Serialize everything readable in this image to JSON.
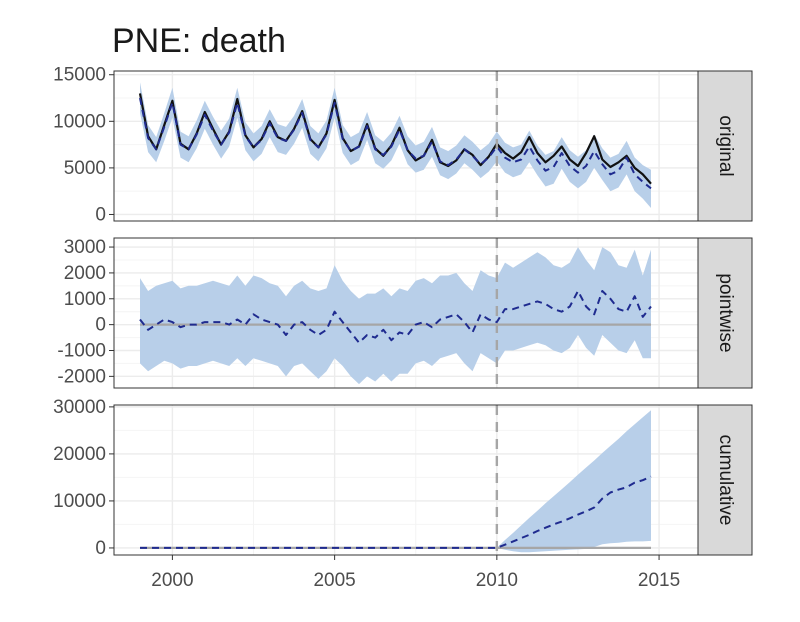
{
  "chart_data": {
    "type": "line",
    "title": "PNE: death",
    "xlabel": "",
    "ylabel": "",
    "xlim": [
      1998.2,
      2016.2
    ],
    "x_ticks": [
      "2000",
      "2005",
      "2010",
      "2015"
    ],
    "intervention": 2010,
    "colors": {
      "band": "#b8cfe9",
      "predicted": "#1f2b8f",
      "observed": "#111111",
      "baseline": "#a6a6a6",
      "intervention": "#a6a6a6",
      "strip": "#d9d9d9",
      "grid": "#ececec"
    },
    "x": [
      1999,
      1999.25,
      1999.5,
      1999.75,
      2000,
      2000.25,
      2000.5,
      2000.75,
      2001,
      2001.25,
      2001.5,
      2001.75,
      2002,
      2002.25,
      2002.5,
      2002.75,
      2003,
      2003.25,
      2003.5,
      2003.75,
      2004,
      2004.25,
      2004.5,
      2004.75,
      2005,
      2005.25,
      2005.5,
      2005.75,
      2006,
      2006.25,
      2006.5,
      2006.75,
      2007,
      2007.25,
      2007.5,
      2007.75,
      2008,
      2008.25,
      2008.5,
      2008.75,
      2009,
      2009.25,
      2009.5,
      2009.75,
      2010,
      2010.25,
      2010.5,
      2010.75,
      2011,
      2011.25,
      2011.5,
      2011.75,
      2012,
      2012.25,
      2012.5,
      2012.75,
      2013,
      2013.25,
      2013.5,
      2013.75,
      2014,
      2014.25,
      2014.5,
      2014.75
    ],
    "panels": [
      {
        "strip": "original",
        "y_ticks": [
          "0",
          "5000",
          "10000",
          "15000"
        ],
        "ylim": [
          -700,
          15400
        ],
        "series": [
          {
            "role": "observed",
            "values": [
              13000,
              8400,
              7000,
              9600,
              12200,
              7600,
              7000,
              8700,
              11000,
              9200,
              7500,
              8900,
              12400,
              8500,
              7200,
              8100,
              10000,
              8300,
              7900,
              9200,
              11100,
              8100,
              7200,
              8700,
              12300,
              8200,
              6800,
              7300,
              9700,
              7100,
              6300,
              7400,
              9300,
              6900,
              5800,
              6300,
              8000,
              5600,
              5200,
              5800,
              7000,
              6400,
              5300,
              6200,
              7600,
              6600,
              6000,
              6700,
              8300,
              6600,
              5600,
              6300,
              7300,
              5900,
              5200,
              6600,
              8400,
              5900,
              5100,
              5600,
              6300,
              5000,
              4300,
              3300
            ]
          },
          {
            "role": "predicted",
            "values": [
              12500,
              8200,
              7000,
              9400,
              12000,
              7500,
              7000,
              8600,
              10700,
              9000,
              7500,
              8800,
              12000,
              8400,
              7200,
              8000,
              9800,
              8200,
              7900,
              9100,
              10900,
              8000,
              7200,
              8600,
              12000,
              8100,
              6800,
              7300,
              9500,
              7000,
              6400,
              7300,
              9100,
              6900,
              6000,
              6300,
              7800,
              5700,
              5300,
              5900,
              7000,
              6300,
              5400,
              6100,
              7300,
              6100,
              5600,
              5900,
              7300,
              5800,
              4700,
              5100,
              6600,
              5200,
              4500,
              5200,
              6800,
              5400,
              4300,
              4700,
              6100,
              4300,
              3500,
              2800
            ]
          },
          {
            "role": "upper",
            "values": [
              14200,
              9600,
              8300,
              10900,
              13600,
              8900,
              8400,
              10100,
              12200,
              10500,
              9000,
              10300,
              13600,
              9900,
              8700,
              9500,
              11300,
              9700,
              9400,
              10600,
              12400,
              9500,
              8700,
              10100,
              13600,
              9600,
              8300,
              8800,
              11000,
              8500,
              7800,
              8800,
              10600,
              8400,
              7400,
              7800,
              9400,
              7200,
              6800,
              7400,
              8500,
              7800,
              6900,
              7600,
              8900,
              7700,
              7200,
              7500,
              9000,
              7400,
              6400,
              6800,
              8300,
              6900,
              6200,
              6900,
              8600,
              7100,
              6100,
              6500,
              7900,
              6100,
              5300,
              4800
            ]
          },
          {
            "role": "lower",
            "values": [
              10900,
              6700,
              5600,
              7900,
              10400,
              6100,
              5600,
              7100,
              9200,
              7500,
              6000,
              7300,
              10400,
              6900,
              5700,
              6500,
              8300,
              6700,
              6400,
              7600,
              9300,
              6500,
              5700,
              7100,
              10400,
              6600,
              5300,
              5800,
              8000,
              5500,
              4900,
              5800,
              7600,
              5400,
              4500,
              4800,
              6200,
              4200,
              3800,
              4400,
              5500,
              4800,
              3900,
              4600,
              5700,
              4500,
              4000,
              4300,
              5600,
              4200,
              3000,
              3300,
              4900,
              3500,
              2800,
              3500,
              5000,
              3700,
              2500,
              2900,
              4300,
              2500,
              1700,
              700
            ]
          }
        ]
      },
      {
        "strip": "pointwise",
        "y_ticks": [
          "-2000",
          "-1000",
          "0",
          "1000",
          "2000",
          "3000"
        ],
        "ylim": [
          -2450,
          3350
        ],
        "series": [
          {
            "role": "predicted",
            "values": [
              200,
              -200,
              0,
              200,
              100,
              -100,
              0,
              0,
              100,
              100,
              100,
              0,
              200,
              0,
              400,
              200,
              100,
              0,
              -400,
              0,
              100,
              -200,
              -400,
              -200,
              500,
              100,
              -300,
              -700,
              -400,
              -500,
              -200,
              -600,
              -300,
              -400,
              0,
              100,
              -100,
              200,
              300,
              400,
              100,
              -300,
              400,
              200,
              100,
              600,
              600,
              700,
              800,
              900,
              800,
              600,
              500,
              700,
              1300,
              700,
              400,
              1300,
              1000,
              600,
              500,
              1100,
              300,
              700
            ]
          },
          {
            "role": "baseline",
            "values": [
              0,
              0,
              0,
              0,
              0,
              0,
              0,
              0,
              0,
              0,
              0,
              0,
              0,
              0,
              0,
              0,
              0,
              0,
              0,
              0,
              0,
              0,
              0,
              0,
              0,
              0,
              0,
              0,
              0,
              0,
              0,
              0,
              0,
              0,
              0,
              0,
              0,
              0,
              0,
              0,
              0,
              0,
              0,
              0,
              0,
              0,
              0,
              0,
              0,
              0,
              0,
              0,
              0,
              0,
              0,
              0,
              0,
              0,
              0,
              0,
              0,
              0,
              0,
              0
            ]
          },
          {
            "role": "upper",
            "values": [
              1800,
              1300,
              1500,
              1600,
              1700,
              1400,
              1500,
              1500,
              1600,
              1700,
              1600,
              1500,
              1900,
              1500,
              1900,
              1800,
              1600,
              1500,
              1100,
              1500,
              1700,
              1400,
              1300,
              1400,
              2300,
              1700,
              1300,
              1000,
              1200,
              1200,
              1400,
              1100,
              1400,
              1300,
              1700,
              1800,
              1600,
              1900,
              1900,
              2000,
              1600,
              1300,
              2100,
              1900,
              1800,
              2400,
              2200,
              2400,
              2600,
              2800,
              2600,
              2300,
              2200,
              2400,
              3000,
              2500,
              2100,
              3000,
              2800,
              2300,
              2200,
              2900,
              1900,
              2900
            ]
          },
          {
            "role": "lower",
            "values": [
              -1500,
              -1800,
              -1600,
              -1400,
              -1500,
              -1700,
              -1600,
              -1600,
              -1500,
              -1400,
              -1500,
              -1600,
              -1300,
              -1600,
              -1300,
              -1400,
              -1500,
              -1600,
              -2000,
              -1600,
              -1500,
              -1800,
              -2100,
              -1800,
              -1300,
              -1600,
              -2000,
              -2300,
              -2000,
              -2200,
              -1900,
              -2200,
              -1900,
              -1900,
              -1500,
              -1400,
              -1600,
              -1300,
              -1200,
              -1100,
              -1500,
              -1800,
              -1100,
              -1300,
              -1500,
              -1000,
              -1000,
              -900,
              -800,
              -700,
              -800,
              -1000,
              -1100,
              -900,
              -400,
              -900,
              -1200,
              -400,
              -700,
              -1000,
              -1100,
              -600,
              -1300,
              -1300
            ]
          }
        ]
      },
      {
        "strip": "cumulative",
        "y_ticks": [
          "0",
          "10000",
          "20000",
          "30000"
        ],
        "ylim": [
          -1500,
          30400
        ],
        "series": [
          {
            "role": "predicted",
            "values": [
              0,
              0,
              0,
              0,
              0,
              0,
              0,
              0,
              0,
              0,
              0,
              0,
              0,
              0,
              0,
              0,
              0,
              0,
              0,
              0,
              0,
              0,
              0,
              0,
              0,
              0,
              0,
              0,
              0,
              0,
              0,
              0,
              0,
              0,
              0,
              0,
              0,
              0,
              0,
              0,
              0,
              0,
              0,
              0,
              0,
              700,
              1400,
              2100,
              2800,
              3600,
              4300,
              5000,
              5600,
              6300,
              7100,
              7800,
              8600,
              10500,
              11800,
              12400,
              12900,
              13900,
              14400,
              15200
            ]
          },
          {
            "role": "baseline",
            "values": [
              0,
              0,
              0,
              0,
              0,
              0,
              0,
              0,
              0,
              0,
              0,
              0,
              0,
              0,
              0,
              0,
              0,
              0,
              0,
              0,
              0,
              0,
              0,
              0,
              0,
              0,
              0,
              0,
              0,
              0,
              0,
              0,
              0,
              0,
              0,
              0,
              0,
              0,
              0,
              0,
              0,
              0,
              0,
              0,
              0,
              0,
              0,
              0,
              0,
              0,
              0,
              0,
              0,
              0,
              0,
              0,
              0,
              0,
              0,
              0,
              0,
              0,
              0,
              0
            ]
          },
          {
            "role": "upper",
            "values": [
              0,
              0,
              0,
              0,
              0,
              0,
              0,
              0,
              0,
              0,
              0,
              0,
              0,
              0,
              0,
              0,
              0,
              0,
              0,
              0,
              0,
              0,
              0,
              0,
              0,
              0,
              0,
              0,
              0,
              0,
              0,
              0,
              0,
              0,
              0,
              0,
              0,
              0,
              0,
              0,
              0,
              0,
              0,
              0,
              0,
              1700,
              3200,
              4800,
              6400,
              7900,
              9500,
              11000,
              12500,
              14000,
              15600,
              17100,
              18600,
              20200,
              21700,
              23200,
              24800,
              26300,
              27800,
              29300
            ]
          },
          {
            "role": "lower",
            "values": [
              0,
              0,
              0,
              0,
              0,
              0,
              0,
              0,
              0,
              0,
              0,
              0,
              0,
              0,
              0,
              0,
              0,
              0,
              0,
              0,
              0,
              0,
              0,
              0,
              0,
              0,
              0,
              0,
              0,
              0,
              0,
              0,
              0,
              0,
              0,
              0,
              0,
              0,
              0,
              0,
              0,
              0,
              0,
              0,
              0,
              -400,
              -700,
              -900,
              -900,
              -800,
              -700,
              -600,
              -500,
              -400,
              -300,
              -200,
              200,
              800,
              1000,
              1100,
              1300,
              1400,
              1400,
              1500
            ]
          }
        ]
      }
    ]
  }
}
